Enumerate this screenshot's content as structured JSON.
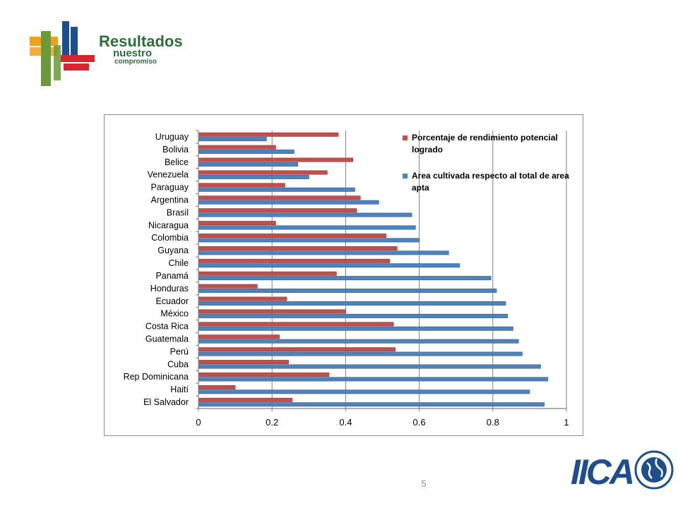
{
  "header": {
    "logo_text": [
      "Resultados,",
      "nuestro",
      "compromiso"
    ],
    "colors": {
      "orange": "#f0a01c",
      "green": "#6a9a3a",
      "blue": "#1f4e8c",
      "red": "#d7262f",
      "text_green": "#2d6e3a"
    }
  },
  "footer": {
    "page_number": "5",
    "iica_logo_text": "IICA",
    "iica_color": "#1f4e8c"
  },
  "chart_data": {
    "type": "bar",
    "orientation": "horizontal",
    "categories": [
      "Uruguay",
      "Bolivia",
      "Belice",
      "Venezuela",
      "Paraguay",
      "Argentina",
      "Brasil",
      "Nicaragua",
      "Colombia",
      "Guyana",
      "Chile",
      "Panamá",
      "Honduras",
      "Ecuador",
      "México",
      "Costa Rica",
      "Guatemala",
      "Perú",
      "Cuba",
      "Rep Dominicana",
      "Haití",
      "El Salvador"
    ],
    "series": [
      {
        "name": "Porcentaje de rendimiento potencial logrado",
        "color": "#c0504d",
        "values": [
          0.38,
          0.21,
          0.42,
          0.35,
          0.235,
          0.44,
          0.43,
          0.21,
          0.51,
          0.54,
          0.52,
          0.375,
          0.16,
          0.24,
          0.4,
          0.53,
          0.22,
          0.535,
          0.245,
          0.355,
          0.1,
          0.255
        ]
      },
      {
        "name": "Area cultivada respecto al total de area apta",
        "color": "#4f81bd",
        "values": [
          0.185,
          0.26,
          0.27,
          0.3,
          0.425,
          0.49,
          0.58,
          0.59,
          0.6,
          0.68,
          0.71,
          0.795,
          0.81,
          0.835,
          0.84,
          0.855,
          0.87,
          0.88,
          0.93,
          0.95,
          0.9,
          0.94
        ]
      }
    ],
    "x_ticks": [
      "0",
      "0.2",
      "0.4",
      "0.6",
      "0.8",
      "1"
    ],
    "xlim": [
      0,
      1
    ],
    "grid": "vertical",
    "legend_position": "top-right"
  }
}
